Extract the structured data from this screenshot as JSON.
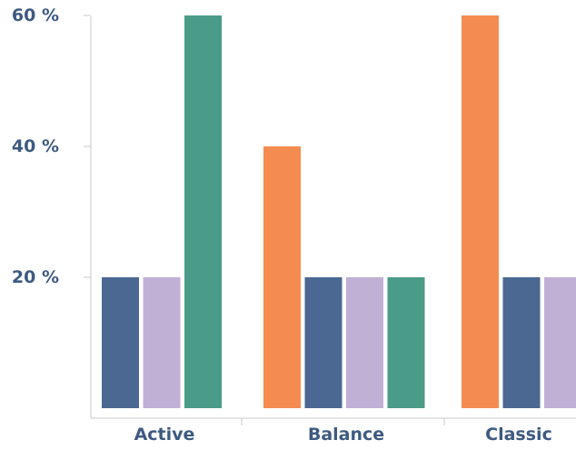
{
  "chart_data": {
    "type": "bar",
    "title": "",
    "xlabel": "",
    "ylabel": "",
    "ylim": [
      0,
      60
    ],
    "y_ticks": [
      {
        "value": 20,
        "label": "20 %"
      },
      {
        "value": 40,
        "label": "40 %"
      },
      {
        "value": 60,
        "label": "60 %"
      }
    ],
    "categories": [
      "Active",
      "Balance",
      "Classic"
    ],
    "groups": [
      {
        "category": "Active",
        "bars": [
          {
            "value": 20,
            "color": "#4a6891"
          },
          {
            "value": 20,
            "color": "#c0b0d6"
          },
          {
            "value": 60,
            "color": "#4a9c89"
          }
        ]
      },
      {
        "category": "Balance",
        "bars": [
          {
            "value": 40,
            "color": "#f48c51"
          },
          {
            "value": 20,
            "color": "#4a6891"
          },
          {
            "value": 20,
            "color": "#c0b0d6"
          },
          {
            "value": 20,
            "color": "#4a9c89"
          }
        ]
      },
      {
        "category": "Classic",
        "bars": [
          {
            "value": 60,
            "color": "#f48c51"
          },
          {
            "value": 20,
            "color": "#4a6891"
          },
          {
            "value": 20,
            "color": "#c0b0d6"
          }
        ]
      }
    ],
    "grid": false,
    "legend": "none"
  },
  "colors": {
    "label_text": "#3d5a80",
    "axis_line": "#c8c8c8"
  }
}
